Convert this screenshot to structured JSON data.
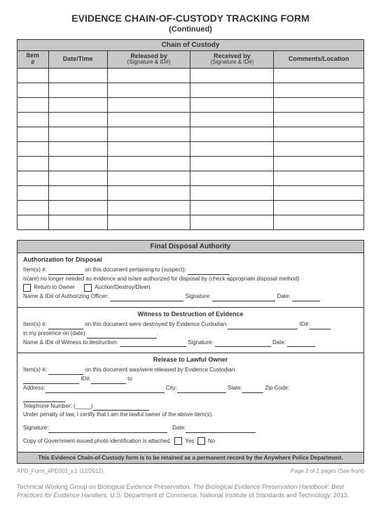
{
  "header": {
    "title": "EVIDENCE CHAIN-OF-CUSTODY TRACKING FORM",
    "subtitle": "(Continued)"
  },
  "custody": {
    "header": "Chain of Custody",
    "cols": {
      "item": "Item\n#",
      "datetime": "Date/Time",
      "released": "Released by",
      "released_sub": "(Signature & ID#)",
      "received": "Received by",
      "received_sub": "(Signature & ID#)",
      "comments": "Comments/Location"
    },
    "row_count": 11
  },
  "final": {
    "header": "Final Disposal Authority",
    "auth": {
      "title": "Authorization for Disposal",
      "l1a": "Item(s) #:",
      "l1b": "on this document pertaining to (suspect):",
      "l2": "is(are) no longer needed as evidence and is/are authorized for disposal by (check appropriate disposal method)",
      "cb1": "Return to Owner",
      "cb2": "Auction/Destroy/Divert",
      "l3a": "Name & ID# of Authorizing Officer:",
      "l3b": "Signature:",
      "l3c": "Date:"
    },
    "witness": {
      "title": "Witness to Destruction of Evidence",
      "l1a": "Item(s) #:",
      "l1b": "on this document were destroyed by Evidence Custodian",
      "l1c": "ID#:",
      "l2": "in my presence on (date)",
      "l3a": "Name & ID# of Witness to destruction:",
      "l3b": "Signature:",
      "l3c": "Date:"
    },
    "release": {
      "title": "Release to Lawful Owner",
      "l1a": "Item(s) #:",
      "l1b": "on this document was/were released by Evidence Custodian",
      "l2a": "ID#:",
      "l2b": "to",
      "l3a": "Address:",
      "l3b": "City:",
      "l3c": "State:",
      "l3d": "Zip Code:",
      "l4": "Telephone Number: (_____)",
      "l5": "Under penalty of law, I certify that I am the lawful owner of the above item(s).",
      "l6a": "Signature:",
      "l6b": "Date:",
      "l7": "Copy of Government-issued photo identification is attached.",
      "cb_yes": "Yes",
      "cb_no": "No"
    },
    "retain": "This Evidence Chain-of-Custody form is to be retained as a permanent record by the Anywhere Police Department."
  },
  "pagefoot": {
    "left": "APD_Form_#PE003_v.1 (12/2012)",
    "right": "Page 2 of 2 pages (See front)"
  },
  "citation": {
    "a": "Technical Working Group on Biological Evidence Preservation. ",
    "b": "The Biological Evidence Preservation Handbook: Best Practices for Evidence Handlers.",
    "c": " U.S. Department of Commerce, National Institute of Standards and Technology. 2013."
  }
}
